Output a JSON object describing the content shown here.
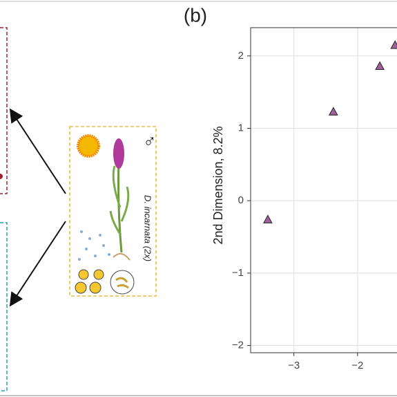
{
  "panel_label": "(b)",
  "species_label": "D. incarnata (2x)",
  "sex_symbol": "♂",
  "chart_data": {
    "type": "scatter",
    "y_label": "2nd Dimension, 8.2%",
    "x": [
      -3.41,
      -2.38,
      -1.65,
      -1.41
    ],
    "values": [
      -0.26,
      1.23,
      1.86,
      2.15
    ],
    "color": "#a0609a",
    "xlim": [
      -3.68,
      -1.38
    ],
    "ylim": [
      -2.1,
      2.39
    ],
    "xticks": [
      {
        "value": -3,
        "label": "−3"
      },
      {
        "value": -2,
        "label": "−2"
      }
    ],
    "yticks": [
      {
        "value": -2,
        "label": "−2"
      },
      {
        "value": -1,
        "label": "−1"
      },
      0,
      1,
      2
    ],
    "grid": true
  }
}
